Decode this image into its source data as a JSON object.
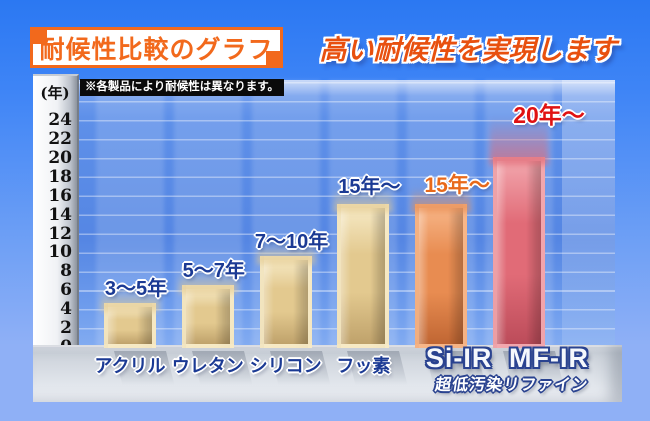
{
  "header": {
    "box_title": "耐候性比較のグラフ",
    "headline": "高い耐候性を実現します"
  },
  "chart": {
    "unit_label": "(年)",
    "note": "※各製品により耐候性は異なります。",
    "y_ticks": [
      24,
      22,
      20,
      18,
      16,
      14,
      12,
      10,
      8,
      6,
      4,
      2,
      0
    ]
  },
  "chart_data": {
    "type": "bar",
    "title": "耐候性比較のグラフ",
    "ylabel": "(年)",
    "ylim": [
      0,
      25
    ],
    "ytick_step": 2,
    "grid": true,
    "categories": [
      "アクリル",
      "ウレタン",
      "シリコン",
      "フッ素",
      "Si-IR",
      "MF-IR"
    ],
    "values": [
      4.5,
      6.5,
      9.5,
      15,
      15,
      20
    ],
    "value_labels": [
      "3〜5年",
      "5〜7年",
      "7〜10年",
      "15年〜",
      "15年〜",
      "20年〜"
    ],
    "sub_label": "超低汚染リファイン",
    "bars": [
      {
        "category": "アクリル",
        "value_label": "3〜5年",
        "years": 4.5,
        "color": "#e3c98f",
        "color_light": "#f6e9c4",
        "color_dark": "#bfa26b",
        "label_color": "#1b3a94",
        "big_label": false
      },
      {
        "category": "ウレタン",
        "value_label": "5〜7年",
        "years": 6.5,
        "color": "#e3c98f",
        "color_light": "#f6e9c4",
        "color_dark": "#bfa26b",
        "label_color": "#1b3a94",
        "big_label": false
      },
      {
        "category": "シリコン",
        "value_label": "7〜10年",
        "years": 9.5,
        "color": "#e3c98f",
        "color_light": "#f6e9c4",
        "color_dark": "#bfa26b",
        "label_color": "#1b3a94",
        "big_label": false
      },
      {
        "category": "フッ素",
        "value_label": "15年〜",
        "years": 15,
        "color": "#e3c98f",
        "color_light": "#f6e9c4",
        "color_dark": "#bfa26b",
        "label_color": "#1b3a94",
        "big_label": false
      },
      {
        "category": "Si-IR",
        "value_label": "15年〜",
        "years": 15,
        "color": "#e88c51",
        "color_light": "#f7b587",
        "color_dark": "#c06633",
        "label_color": "#e8691a",
        "big_label": true
      },
      {
        "category": "MF-IR",
        "value_label": "20年〜",
        "years": 20,
        "color": "#e16b77",
        "color_light": "#f2a6ad",
        "color_dark": "#bc4c5a",
        "label_color": "#e01212",
        "big_label": true
      }
    ]
  },
  "colors": {
    "accent_orange": "#f2691c",
    "headline_red": "#e8500f",
    "label_navy": "#1b3a94",
    "note_bg": "#0a0a0a",
    "wall_blue": "#5586e3"
  }
}
